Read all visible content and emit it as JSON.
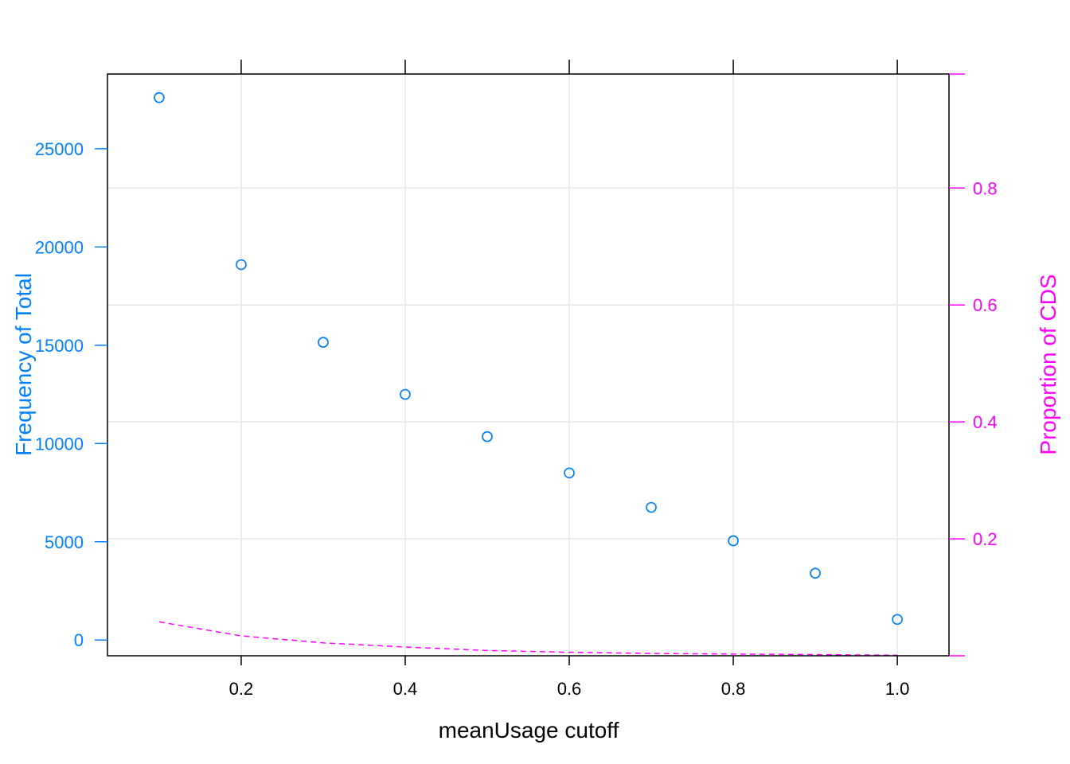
{
  "chart_data": {
    "type": "scatter",
    "xlabel": "meanUsage cutoff",
    "ylabel": "Frequency of Total",
    "y2label": "Proportion of CDS",
    "xlim": [
      0.037,
      1.063
    ],
    "ylim": [
      -800,
      28800
    ],
    "y2lim": [
      0.0,
      0.995
    ],
    "x_ticks": [
      "0.2",
      "0.4",
      "0.6",
      "0.8",
      "1.0"
    ],
    "y_ticks": [
      "0",
      "5000",
      "10000",
      "15000",
      "20000",
      "25000"
    ],
    "y2_ticks": [
      "0.2",
      "0.4",
      "0.6",
      "0.8"
    ],
    "grid": true,
    "colors": {
      "primary": "#0080ff",
      "secondary": "#ff00ff",
      "grid": "#e6e6e6",
      "axis": "#000000"
    },
    "series": [
      {
        "axis": "left",
        "marker": "open-circle",
        "x": [
          0.1,
          0.2,
          0.3,
          0.4,
          0.5,
          0.6,
          0.7,
          0.8,
          0.9,
          1.0
        ],
        "values": [
          27600,
          19100,
          15150,
          12500,
          10350,
          8500,
          6750,
          5050,
          3400,
          1050
        ]
      },
      {
        "axis": "right",
        "line": "dashed",
        "x": [
          0.1,
          0.2,
          0.3,
          0.4,
          0.5,
          0.6,
          0.7,
          0.8,
          0.9,
          1.0
        ],
        "values": [
          0.058,
          0.034,
          0.022,
          0.015,
          0.009,
          0.006,
          0.004,
          0.003,
          0.002,
          0.001
        ]
      }
    ]
  }
}
